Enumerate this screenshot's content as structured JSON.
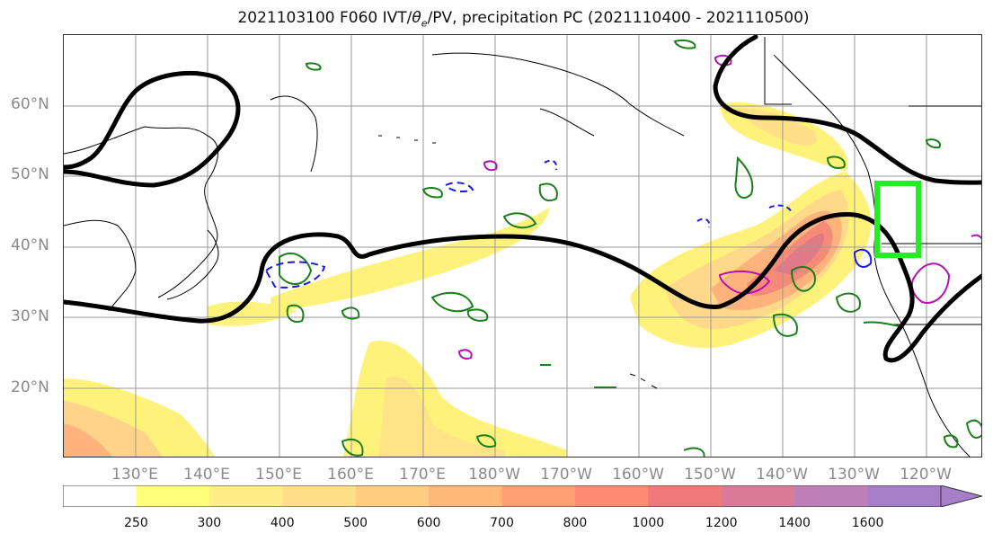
{
  "title": {
    "prefix": "2021103100 F060 IVT/",
    "theta": "θ",
    "sub": "e",
    "suffix": "/PV, precipitation PC (2021110400 - 2021110500)"
  },
  "axes": {
    "lat_labels": [
      "60°N",
      "50°N",
      "40°N",
      "30°N",
      "20°N"
    ],
    "lon_labels": [
      "130°E",
      "140°E",
      "150°E",
      "160°E",
      "170°E",
      "180°W",
      "170°W",
      "160°W",
      "150°W",
      "140°W",
      "130°W",
      "120°W"
    ]
  },
  "colorbar": {
    "ticks": [
      "250",
      "300",
      "400",
      "500",
      "600",
      "700",
      "800",
      "1000",
      "1200",
      "1400",
      "1600"
    ],
    "colors": [
      "#ffffff",
      "#ffff7a",
      "#ffee86",
      "#ffdf88",
      "#ffcc80",
      "#ffb87a",
      "#ffa074",
      "#ff8a72",
      "#f07a7a",
      "#d97b98",
      "#bf7fb8",
      "#a77fc8"
    ]
  },
  "highlight_box_color": "#22ee22"
}
